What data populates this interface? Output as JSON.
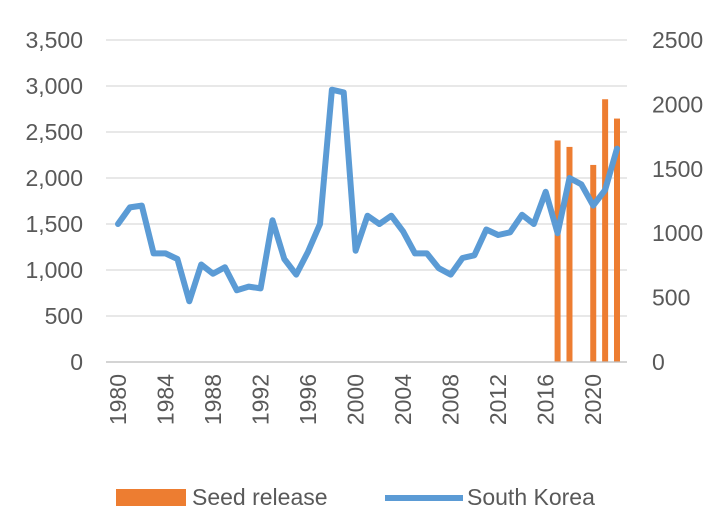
{
  "chart_data": {
    "type": "bar+line",
    "title": "",
    "xlabel": "",
    "ylabel_left": "",
    "ylabel_right": "",
    "y_left": {
      "min": 0,
      "max": 3500,
      "ticks": [
        "0",
        "500",
        "1,000",
        "1,500",
        "2,000",
        "2,500",
        "3,000",
        "3,500"
      ]
    },
    "y_right": {
      "min": 0,
      "max": 2500,
      "ticks": [
        "0",
        "500",
        "1000",
        "1500",
        "2000",
        "2500"
      ]
    },
    "x_tick_labels": [
      "1980",
      "1984",
      "1988",
      "1992",
      "1996",
      "2000",
      "2004",
      "2008",
      "2012",
      "2016",
      "2020"
    ],
    "years": [
      1980,
      1981,
      1982,
      1983,
      1984,
      1985,
      1986,
      1987,
      1988,
      1989,
      1990,
      1991,
      1992,
      1993,
      1994,
      1995,
      1996,
      1997,
      1998,
      1999,
      2000,
      2001,
      2002,
      2003,
      2004,
      2005,
      2006,
      2007,
      2008,
      2009,
      2010,
      2011,
      2012,
      2013,
      2014,
      2015,
      2016,
      2017,
      2018,
      2019,
      2020,
      2021,
      2022
    ],
    "series": [
      {
        "name": "Seed release",
        "kind": "bar",
        "axis": "right",
        "color": "#ED7D31",
        "years": [
          2017,
          2018,
          2020,
          2021,
          2022
        ],
        "values": [
          1720,
          1670,
          1530,
          2040,
          1890
        ]
      },
      {
        "name": "South Korea",
        "kind": "line",
        "axis": "left",
        "color": "#5B9BD5",
        "values": [
          1500,
          1680,
          1700,
          1180,
          1180,
          1120,
          660,
          1060,
          960,
          1030,
          780,
          820,
          800,
          1540,
          1120,
          950,
          1200,
          1500,
          2960,
          2930,
          1210,
          1590,
          1500,
          1590,
          1420,
          1180,
          1180,
          1020,
          950,
          1130,
          1160,
          1440,
          1380,
          1410,
          1600,
          1500,
          1850,
          1400,
          2000,
          1930,
          1700,
          1870,
          2320
        ]
      }
    ],
    "legend": {
      "placement": "bottom",
      "entries": [
        "Seed release",
        "South Korea"
      ]
    }
  }
}
